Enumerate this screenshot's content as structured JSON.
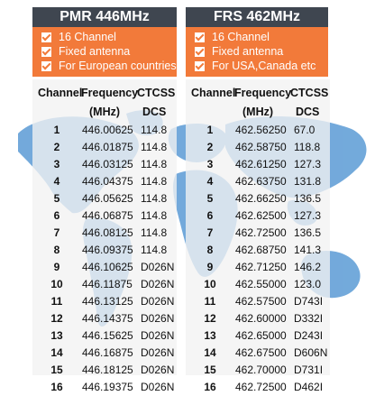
{
  "pmr": {
    "title": "PMR 446MHz",
    "features": [
      "16 Channel",
      "Fixed antenna",
      "For European countries"
    ],
    "headers": {
      "channel": "Channel",
      "frequency": "Frequency",
      "unit": "(MHz)",
      "ctcss": "CTCSS",
      "dcs": "DCS"
    },
    "rows": [
      {
        "ch": "1",
        "freq": "446.00625",
        "code": "114.8"
      },
      {
        "ch": "2",
        "freq": "446.01875",
        "code": "114.8"
      },
      {
        "ch": "3",
        "freq": "446.03125",
        "code": "114.8"
      },
      {
        "ch": "4",
        "freq": "446.04375",
        "code": "114.8"
      },
      {
        "ch": "5",
        "freq": "446.05625",
        "code": "114.8"
      },
      {
        "ch": "6",
        "freq": "446.06875",
        "code": "114.8"
      },
      {
        "ch": "7",
        "freq": "446.08125",
        "code": "114.8"
      },
      {
        "ch": "8",
        "freq": "446.09375",
        "code": "114.8"
      },
      {
        "ch": "9",
        "freq": "446.10625",
        "code": "D026N"
      },
      {
        "ch": "10",
        "freq": "446.11875",
        "code": "D026N"
      },
      {
        "ch": "11",
        "freq": "446.13125",
        "code": "D026N"
      },
      {
        "ch": "12",
        "freq": "446.14375",
        "code": "D026N"
      },
      {
        "ch": "13",
        "freq": "446.15625",
        "code": "D026N"
      },
      {
        "ch": "14",
        "freq": "446.16875",
        "code": "D026N"
      },
      {
        "ch": "15",
        "freq": "446.18125",
        "code": "D026N"
      },
      {
        "ch": "16",
        "freq": "446.19375",
        "code": "D026N"
      }
    ]
  },
  "frs": {
    "title": "FRS 462MHz",
    "features": [
      "16 Channel",
      "Fixed antenna",
      "For USA,Canada etc"
    ],
    "headers": {
      "channel": "Channel",
      "frequency": "Frequency",
      "unit": "(MHz)",
      "ctcss": "CTCSS",
      "dcs": "DCS"
    },
    "rows": [
      {
        "ch": "1",
        "freq": "462.56250",
        "code": "67.0"
      },
      {
        "ch": "2",
        "freq": "462.58750",
        "code": "118.8"
      },
      {
        "ch": "3",
        "freq": "462.61250",
        "code": "127.3"
      },
      {
        "ch": "4",
        "freq": "462.63750",
        "code": "131.8"
      },
      {
        "ch": "5",
        "freq": "462.66250",
        "code": "136.5"
      },
      {
        "ch": "6",
        "freq": "462.62500",
        "code": "127.3"
      },
      {
        "ch": "7",
        "freq": "462.72500",
        "code": "136.5"
      },
      {
        "ch": "8",
        "freq": "462.68750",
        "code": "141.3"
      },
      {
        "ch": "9",
        "freq": "462.71250",
        "code": "146.2"
      },
      {
        "ch": "10",
        "freq": "462.55000",
        "code": "123.0"
      },
      {
        "ch": "11",
        "freq": "462.57500",
        "code": "D743I"
      },
      {
        "ch": "12",
        "freq": "462.60000",
        "code": "D332I"
      },
      {
        "ch": "13",
        "freq": "462.65000",
        "code": "D243I"
      },
      {
        "ch": "14",
        "freq": "462.67500",
        "code": "D606N"
      },
      {
        "ch": "15",
        "freq": "462.70000",
        "code": "D731I"
      },
      {
        "ch": "16",
        "freq": "462.72500",
        "code": "D462I"
      }
    ]
  },
  "colors": {
    "header_band": "#3f4650",
    "feature_box": "#f27a3a",
    "map_blue": "#5b9bd5"
  },
  "icons": {
    "feature_bullet": "checkmark-icon"
  }
}
